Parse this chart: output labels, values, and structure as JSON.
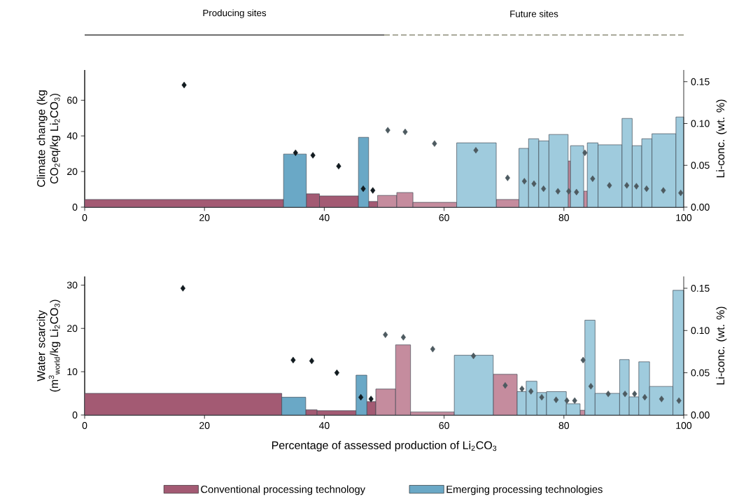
{
  "chart_data": [
    {
      "type": "histogram",
      "ylabel": "Climate change (kg CO$_{2}$eq/kg Li$_{2}$CO$_{3}$)",
      "y2label": "Li-conc. (wt. %)",
      "bins": [
        0,
        33.2,
        37.0,
        39.2,
        45.7,
        47.4,
        48.9,
        52.1,
        54.8,
        62.1,
        68.7,
        72.5,
        74.1,
        75.8,
        77.5,
        80.7,
        81.1,
        83.3,
        83.9,
        85.7,
        89.7,
        91.4,
        93.0,
        94.7,
        98.7,
        100
      ],
      "series": [
        {
          "values": [
            4.3,
            null,
            7.5,
            6.3,
            null,
            3.2,
            6.6,
            8.2,
            2.7,
            null,
            4.3,
            null,
            null,
            null,
            null,
            25.9,
            null,
            9.0,
            null,
            null,
            null,
            null,
            null,
            null,
            null
          ],
          "colors": [
            "#a35a73",
            null,
            "#a35a73",
            "#a35a73",
            null,
            "#a35a73",
            "#c58c9e",
            "#c58c9e",
            "#c58c9e",
            null,
            "#c58c9e",
            null,
            null,
            null,
            null,
            "#c58c9e",
            null,
            "#c58c9e",
            null,
            null,
            null,
            null,
            null,
            null,
            null
          ]
        },
        {
          "values": [
            null,
            29.8,
            null,
            null,
            39.2,
            null,
            null,
            null,
            null,
            36.1,
            null,
            33.0,
            38.4,
            37.2,
            40.8,
            null,
            34.5,
            null,
            36.1,
            35.0,
            49.8,
            34.5,
            38.4,
            41.2,
            50.6
          ],
          "colors": [
            null,
            "#6aa8c6",
            null,
            null,
            "#6aa8c6",
            null,
            null,
            null,
            null,
            "#9fcbdd",
            null,
            "#9fcbdd",
            "#9fcbdd",
            "#9fcbdd",
            "#9fcbdd",
            null,
            "#9fcbdd",
            null,
            "#9fcbdd",
            "#9fcbdd",
            "#9fcbdd",
            "#9fcbdd",
            "#9fcbdd",
            "#9fcbdd",
            "#9fcbdd"
          ]
        },
        {
          "type": "scatter",
          "axis": "y2",
          "marker": "diamond",
          "x": [
            16.6,
            35.2,
            38.1,
            42.4,
            46.5,
            48.1,
            50.6,
            53.5,
            58.4,
            65.3,
            70.6,
            73.4,
            75.0,
            76.6,
            79.0,
            80.8,
            82.1,
            83.5,
            84.8,
            87.6,
            90.5,
            92.1,
            93.8,
            96.6,
            99.5
          ],
          "values": [
            0.146,
            0.065,
            0.062,
            0.049,
            0.022,
            0.02,
            0.092,
            0.09,
            0.076,
            0.068,
            0.035,
            0.031,
            0.028,
            0.022,
            0.019,
            0.019,
            0.018,
            0.065,
            0.034,
            0.026,
            0.026,
            0.025,
            0.022,
            0.02,
            0.017
          ],
          "colors": [
            "#111a1f",
            "#111a1f",
            "#111a1f",
            "#111a1f",
            "#111a1f",
            "#111a1f",
            "#4d5a60",
            "#4d5a60",
            "#4d5a60",
            "#4d5a60",
            "#4d5a60",
            "#4d5a60",
            "#4d5a60",
            "#4d5a60",
            "#4d5a60",
            "#4d5a60",
            "#4d5a60",
            "#4d5a60",
            "#4d5a60",
            "#4d5a60",
            "#4d5a60",
            "#4d5a60",
            "#4d5a60",
            "#4d5a60",
            "#4d5a60"
          ]
        }
      ],
      "xlim": [
        0,
        100
      ],
      "xticks": [
        0,
        20,
        40,
        60,
        80,
        100
      ],
      "ylim": [
        0,
        77
      ],
      "yticks": [
        0,
        20,
        40,
        60
      ],
      "y2lim": [
        0,
        0.164
      ],
      "y2ticks": [
        {
          "value": 0,
          "label": "0.00"
        },
        {
          "value": 0.05,
          "label": "0.05"
        },
        {
          "value": 0.1,
          "label": "0.10"
        },
        {
          "value": 0.15,
          "label": "0.15"
        }
      ],
      "annotations": [
        "Producing sites",
        "Future sites"
      ]
    },
    {
      "type": "histogram",
      "ylabel": "Water scarcity (m$^{3}$$_{world}$/kg Li$_{2}$CO$_{3}$)",
      "y2label": "Li-conc. (wt. %)",
      "xlabel": "Percentage of assessed production of Li$_{2}$CO$_{3}$",
      "bins": [
        0,
        32.9,
        36.9,
        38.8,
        45.3,
        47.1,
        48.6,
        51.9,
        54.4,
        61.7,
        68.2,
        72.2,
        73.7,
        75.5,
        77.1,
        80.4,
        82.7,
        83.5,
        85.2,
        89.3,
        90.9,
        92.5,
        94.3,
        98.2,
        100
      ],
      "series": [
        {
          "name": "Conventional processing technology",
          "color": "#a35a73",
          "values": [
            5.0,
            null,
            1.2,
            1.0,
            null,
            3.1,
            6.0,
            16.2,
            0.7,
            null,
            9.4,
            null,
            null,
            null,
            null,
            null,
            1.1,
            null,
            null,
            null,
            null,
            null,
            null,
            null
          ],
          "colors": [
            "#a35a73",
            null,
            "#a35a73",
            "#a35a73",
            null,
            "#a35a73",
            "#c58c9e",
            "#c58c9e",
            "#c58c9e",
            null,
            "#c58c9e",
            null,
            null,
            null,
            null,
            null,
            "#c58c9e",
            null,
            null,
            null,
            null,
            null,
            null,
            null
          ]
        },
        {
          "name": "Emerging processing technologies",
          "color": "#6aa8c6",
          "values": [
            null,
            4.1,
            null,
            null,
            9.2,
            null,
            null,
            null,
            null,
            13.8,
            null,
            5.4,
            7.8,
            5.2,
            5.4,
            2.6,
            null,
            21.9,
            5.0,
            12.8,
            4.2,
            12.3,
            6.6,
            28.8
          ],
          "colors": [
            null,
            "#6aa8c6",
            null,
            null,
            "#6aa8c6",
            null,
            null,
            null,
            null,
            "#9fcbdd",
            null,
            "#9fcbdd",
            "#9fcbdd",
            "#9fcbdd",
            "#9fcbdd",
            "#9fcbdd",
            null,
            "#9fcbdd",
            "#9fcbdd",
            "#9fcbdd",
            "#9fcbdd",
            "#9fcbdd",
            "#9fcbdd",
            "#9fcbdd"
          ]
        },
        {
          "type": "scatter",
          "axis": "y2",
          "marker": "diamond",
          "x": [
            16.4,
            34.8,
            37.9,
            42.1,
            46.1,
            47.8,
            50.2,
            53.2,
            58.1,
            64.9,
            70.2,
            73.0,
            74.5,
            76.3,
            78.7,
            80.5,
            81.8,
            83.2,
            84.5,
            87.4,
            90.2,
            91.8,
            93.5,
            96.3,
            99.2
          ],
          "values": [
            0.15,
            0.065,
            0.064,
            0.05,
            0.021,
            0.019,
            0.095,
            0.092,
            0.078,
            0.07,
            0.035,
            0.031,
            0.028,
            0.021,
            0.018,
            0.017,
            0.017,
            0.065,
            0.034,
            0.025,
            0.025,
            0.025,
            0.021,
            0.019,
            0.017
          ],
          "colors": [
            "#111a1f",
            "#111a1f",
            "#111a1f",
            "#111a1f",
            "#111a1f",
            "#111a1f",
            "#4d5a60",
            "#4d5a60",
            "#4d5a60",
            "#4d5a60",
            "#4d5a60",
            "#4d5a60",
            "#4d5a60",
            "#4d5a60",
            "#4d5a60",
            "#4d5a60",
            "#4d5a60",
            "#4d5a60",
            "#4d5a60",
            "#4d5a60",
            "#4d5a60",
            "#4d5a60",
            "#4d5a60",
            "#4d5a60",
            "#4d5a60"
          ]
        }
      ],
      "xlim": [
        0,
        100
      ],
      "xticks": [
        0,
        20,
        40,
        60,
        80,
        100
      ],
      "ylim": [
        0,
        32
      ],
      "yticks": [
        0,
        10,
        20,
        30
      ],
      "y2lim": [
        0,
        0.164
      ],
      "y2ticks": [
        {
          "value": 0,
          "label": "0.00"
        },
        {
          "value": 0.05,
          "label": "0.05"
        },
        {
          "value": 0.1,
          "label": "0.10"
        },
        {
          "value": 0.15,
          "label": "0.15"
        }
      ],
      "legend": "bottom"
    }
  ]
}
